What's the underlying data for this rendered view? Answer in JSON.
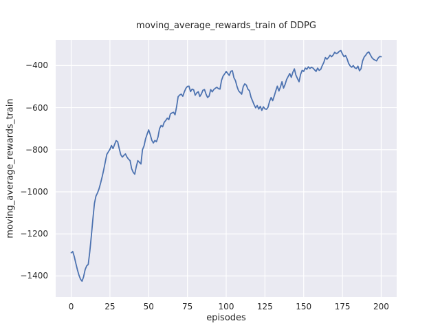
{
  "chart_data": {
    "type": "line",
    "title": "moving_average_rewards_train of DDPG",
    "xlabel": "episodes",
    "ylabel": "moving_average_rewards_train",
    "x_start": 0,
    "x_step": 1,
    "xlim": [
      -10,
      210
    ],
    "ylim": [
      -1500,
      -278
    ],
    "grid": "on",
    "legend_position": "none",
    "x_ticks": {
      "values": [
        0,
        25,
        50,
        75,
        100,
        125,
        150,
        175,
        200
      ],
      "labels": [
        "0",
        "25",
        "50",
        "75",
        "100",
        "125",
        "150",
        "175",
        "200"
      ]
    },
    "y_ticks": {
      "values": [
        -400,
        -600,
        -800,
        -1000,
        -1200,
        -1400
      ],
      "labels": [
        "−400",
        "−600",
        "−800",
        "−1000",
        "−1200",
        "−1400"
      ]
    },
    "series": [
      {
        "name": "moving_average_rewards_train",
        "values": [
          -1290,
          -1284,
          -1308,
          -1340,
          -1370,
          -1396,
          -1415,
          -1425,
          -1404,
          -1370,
          -1352,
          -1345,
          -1285,
          -1210,
          -1130,
          -1055,
          -1020,
          -1005,
          -985,
          -958,
          -928,
          -895,
          -858,
          -822,
          -810,
          -798,
          -780,
          -795,
          -775,
          -757,
          -762,
          -795,
          -824,
          -835,
          -827,
          -820,
          -835,
          -845,
          -852,
          -890,
          -907,
          -916,
          -880,
          -852,
          -860,
          -868,
          -800,
          -782,
          -748,
          -726,
          -706,
          -728,
          -755,
          -768,
          -756,
          -762,
          -740,
          -700,
          -685,
          -691,
          -670,
          -661,
          -650,
          -657,
          -630,
          -625,
          -622,
          -634,
          -596,
          -548,
          -540,
          -536,
          -546,
          -525,
          -508,
          -499,
          -498,
          -524,
          -512,
          -515,
          -541,
          -530,
          -524,
          -547,
          -535,
          -517,
          -514,
          -536,
          -552,
          -545,
          -514,
          -525,
          -514,
          -508,
          -503,
          -510,
          -512,
          -470,
          -450,
          -440,
          -428,
          -438,
          -447,
          -427,
          -425,
          -458,
          -472,
          -500,
          -520,
          -528,
          -536,
          -500,
          -487,
          -493,
          -512,
          -520,
          -550,
          -568,
          -586,
          -601,
          -590,
          -607,
          -594,
          -613,
          -596,
          -606,
          -608,
          -598,
          -570,
          -552,
          -567,
          -545,
          -520,
          -498,
          -521,
          -502,
          -477,
          -507,
          -490,
          -466,
          -452,
          -438,
          -456,
          -432,
          -416,
          -446,
          -462,
          -477,
          -442,
          -423,
          -428,
          -412,
          -418,
          -406,
          -414,
          -408,
          -412,
          -420,
          -428,
          -412,
          -423,
          -418,
          -400,
          -385,
          -362,
          -370,
          -362,
          -351,
          -358,
          -350,
          -337,
          -343,
          -340,
          -332,
          -329,
          -345,
          -358,
          -352,
          -368,
          -390,
          -402,
          -408,
          -400,
          -411,
          -414,
          -403,
          -425,
          -415,
          -378,
          -360,
          -351,
          -340,
          -335,
          -349,
          -362,
          -370,
          -374,
          -378,
          -365,
          -357,
          -358
        ]
      }
    ],
    "style": {
      "line_color": "#4c72b0",
      "line_width": 1.8,
      "plot_bg": "#eaeaf2",
      "grid_color": "#ffffff",
      "figure_bg": "#ffffff",
      "text_color": "#262626"
    }
  }
}
